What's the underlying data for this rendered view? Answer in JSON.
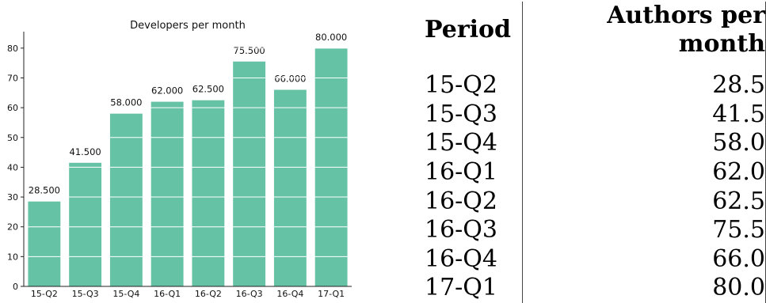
{
  "chart_data": {
    "type": "bar",
    "title": "Developers per month",
    "categories": [
      "15-Q2",
      "15-Q3",
      "15-Q4",
      "16-Q1",
      "16-Q2",
      "16-Q3",
      "16-Q4",
      "17-Q1"
    ],
    "values": [
      28.5,
      41.5,
      58.0,
      62.0,
      62.5,
      75.5,
      66.0,
      80.0
    ],
    "value_labels": [
      "28.500",
      "41.500",
      "58.000",
      "62.000",
      "62.500",
      "75.500",
      "66.000",
      "80.000"
    ],
    "ylim": [
      0,
      85
    ],
    "yticks": [
      0,
      10,
      20,
      30,
      40,
      50,
      60,
      70,
      80
    ],
    "grid": true,
    "bar_color": "#66c2a5"
  },
  "table": {
    "headers": [
      "Period",
      "Authors per month"
    ],
    "rows": [
      [
        "15-Q2",
        "28.5"
      ],
      [
        "15-Q3",
        "41.5"
      ],
      [
        "15-Q4",
        "58.0"
      ],
      [
        "16-Q1",
        "62.0"
      ],
      [
        "16-Q2",
        "62.5"
      ],
      [
        "16-Q3",
        "75.5"
      ],
      [
        "16-Q4",
        "66.0"
      ],
      [
        "17-Q1",
        "80.0"
      ]
    ]
  }
}
